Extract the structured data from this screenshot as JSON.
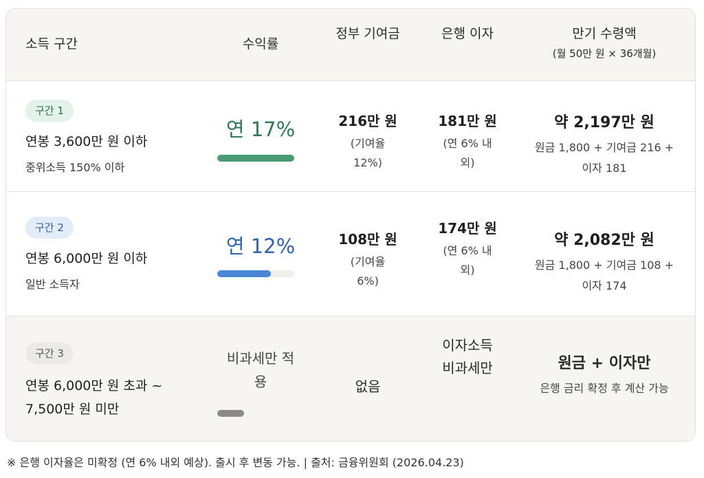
{
  "header": {
    "col_bracket": "소득 구간",
    "col_rate": "수익률",
    "col_gov": "정부 기여금",
    "col_interest": "은행 이자",
    "col_maturity": "만기 수령액",
    "col_maturity_sub": "(월 50만 원 × 36개월)"
  },
  "rows": [
    {
      "badge": "구간 1",
      "income": "연봉 3,600만 원 이하",
      "income_sub": "중위소득 150% 이하",
      "rate": "연 17%",
      "rate_fill": 1.0,
      "gov_amount": "216만 원",
      "gov_note": "(기여율 12%)",
      "interest": "181만 원",
      "interest_note": "(연 6% 내외)",
      "maturity": "약 2,197만 원",
      "maturity_calc": "원금 1,800 + 기여금 216 + 이자 181"
    },
    {
      "badge": "구간 2",
      "income": "연봉 6,000만 원 이하",
      "income_sub": "일반 소득자",
      "rate": "연 12%",
      "rate_fill": 0.7,
      "gov_amount": "108만 원",
      "gov_note": "(기여율 6%)",
      "interest": "174만 원",
      "interest_note": "(연 6% 내외)",
      "maturity": "약 2,082만 원",
      "maturity_calc": "원금 1,800 + 기여금 108 + 이자 174"
    },
    {
      "badge": "구간 3",
      "income": "연봉 6,000만 원 초과 ~ 7,500만 원 미만",
      "rate": "비과세만 적용",
      "rate_fill": 0.35,
      "gov_amount": "없음",
      "interest": "이자소득 비과세만",
      "maturity": "원금 + 이자만",
      "maturity_calc": "은행 금리 확정 후 계산 가능"
    }
  ],
  "colors": {
    "green": "#4a9a74",
    "blue": "#4a86d6",
    "gray": "#8a8a88"
  },
  "footnote": "※ 은행 이자율은 미확정 (연 6% 내외 예상). 출시 후 변동 가능. | 출처: 금융위원회 (2026.04.23)"
}
